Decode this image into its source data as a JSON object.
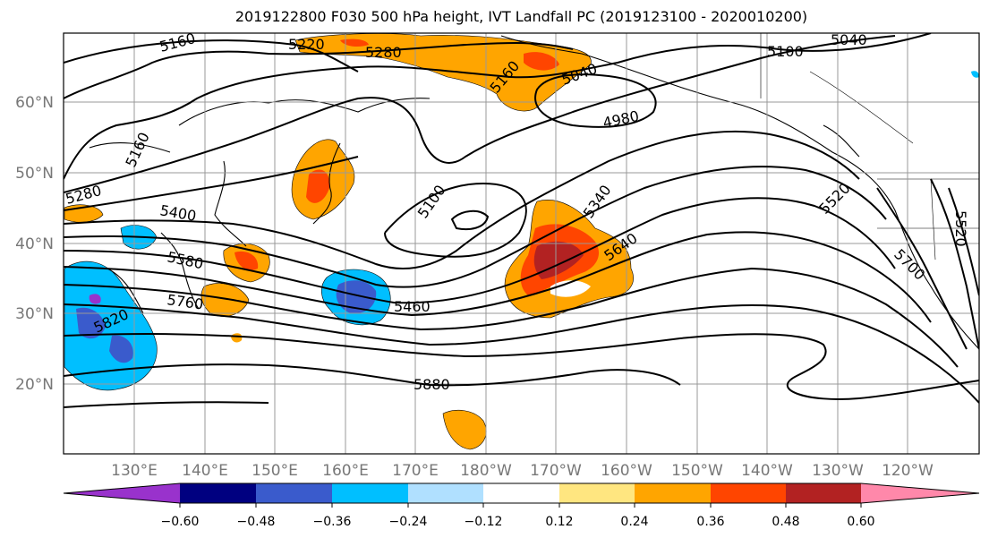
{
  "title": "2019122800 F030 500 hPa height, IVT Landfall PC (2019123100 - 2020010200)",
  "lat_labels": [
    "60°N",
    "50°N",
    "40°N",
    "30°N",
    "20°N"
  ],
  "lon_labels": [
    "130°E",
    "140°E",
    "150°E",
    "160°E",
    "170°E",
    "180°W",
    "170°W",
    "160°W",
    "150°W",
    "140°W",
    "130°W",
    "120°W"
  ],
  "contour_labels": [
    "5160",
    "5220",
    "5280",
    "5160",
    "5040",
    "4980",
    "5100",
    "5040",
    "5160",
    "5280",
    "5400",
    "5100",
    "5340",
    "5520",
    "5640",
    "5520",
    "5580",
    "5760",
    "5460",
    "5700",
    "5820",
    "5880"
  ],
  "colorbar": {
    "ticks": [
      "−0.60",
      "−0.48",
      "−0.36",
      "−0.24",
      "−0.12",
      "0.12",
      "0.24",
      "0.36",
      "0.48",
      "0.60"
    ],
    "colors": [
      "#9932cc",
      "#000080",
      "#3a5bcc",
      "#00bfff",
      "#b0e0ff",
      "#ffffff",
      "#ffe680",
      "#ffa500",
      "#ff4500",
      "#b22222",
      "#ff88aa"
    ]
  }
}
